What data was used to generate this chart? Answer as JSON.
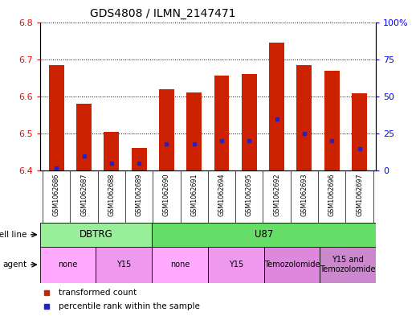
{
  "title": "GDS4808 / ILMN_2147471",
  "samples": [
    "GSM1062686",
    "GSM1062687",
    "GSM1062688",
    "GSM1062689",
    "GSM1062690",
    "GSM1062691",
    "GSM1062694",
    "GSM1062695",
    "GSM1062692",
    "GSM1062693",
    "GSM1062696",
    "GSM1062697"
  ],
  "transformed_counts": [
    6.685,
    6.58,
    6.505,
    6.462,
    6.62,
    6.61,
    6.655,
    6.66,
    6.745,
    6.685,
    6.67,
    6.608
  ],
  "percentile_ranks": [
    2,
    10,
    5,
    5,
    18,
    18,
    20,
    20,
    35,
    25,
    20,
    15
  ],
  "ylim_left": [
    6.4,
    6.8
  ],
  "ylim_right": [
    0,
    100
  ],
  "yticks_left": [
    6.4,
    6.5,
    6.6,
    6.7,
    6.8
  ],
  "yticks_right": [
    0,
    25,
    50,
    75,
    100
  ],
  "bar_color": "#cc2200",
  "dot_color": "#2222cc",
  "cell_line_groups": [
    {
      "label": "DBTRG",
      "start": 0,
      "end": 3,
      "color": "#99ee99"
    },
    {
      "label": "U87",
      "start": 4,
      "end": 11,
      "color": "#66dd66"
    }
  ],
  "agent_groups": [
    {
      "label": "none",
      "start": 0,
      "end": 1,
      "color": "#ffaaff"
    },
    {
      "label": "Y15",
      "start": 2,
      "end": 3,
      "color": "#ee99ee"
    },
    {
      "label": "none",
      "start": 4,
      "end": 5,
      "color": "#ffaaff"
    },
    {
      "label": "Y15",
      "start": 6,
      "end": 7,
      "color": "#ee99ee"
    },
    {
      "label": "Temozolomide",
      "start": 8,
      "end": 9,
      "color": "#dd88dd"
    },
    {
      "label": "Y15 and\nTemozolomide",
      "start": 10,
      "end": 11,
      "color": "#cc88cc"
    }
  ],
  "cell_line_label": "cell line",
  "agent_label": "agent",
  "legend_items": [
    {
      "label": "transformed count",
      "color": "#cc2200"
    },
    {
      "label": "percentile rank within the sample",
      "color": "#2222cc"
    }
  ],
  "tick_bg_color": "#d0d0d0",
  "border_color": "#888888"
}
